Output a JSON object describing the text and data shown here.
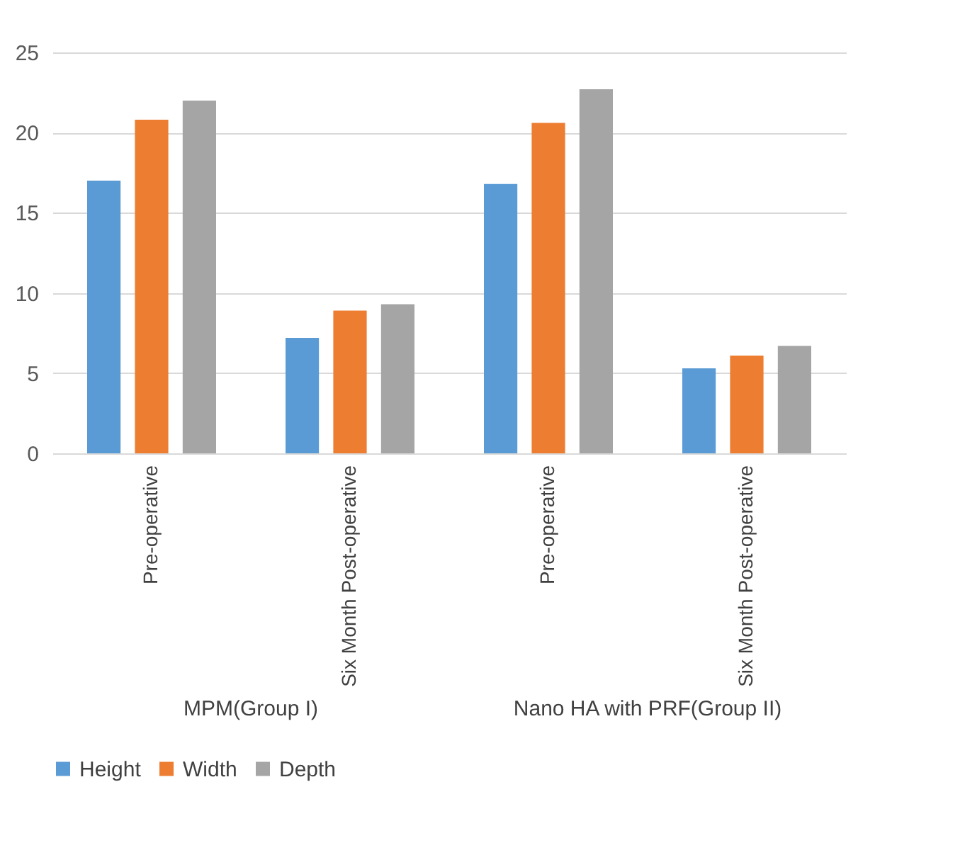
{
  "chart_data": {
    "type": "bar",
    "categories": [
      "Pre-operative",
      "Six Month Post-operative",
      "Pre-operative",
      "Six Month Post-operative"
    ],
    "series": [
      {
        "name": "Height",
        "color": "#5b9bd5",
        "values": [
          17.0,
          7.2,
          16.8,
          5.3
        ]
      },
      {
        "name": "Width",
        "color": "#ed7d31",
        "values": [
          20.8,
          8.9,
          20.6,
          6.1
        ]
      },
      {
        "name": "Depth",
        "color": "#a5a5a5",
        "values": [
          22.0,
          9.3,
          22.7,
          6.7
        ]
      }
    ],
    "ylim": [
      0,
      25
    ],
    "yticks": [
      0,
      5,
      10,
      15,
      20,
      25
    ],
    "grid": "y",
    "legend": "bottom",
    "annotations": [
      "MPM(Group I)",
      "Nano HA with PRF(Group II)"
    ]
  }
}
